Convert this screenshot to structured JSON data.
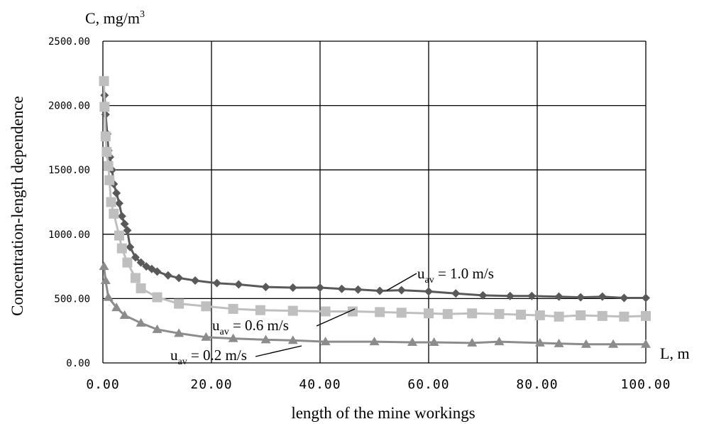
{
  "chart_data": {
    "type": "line",
    "title": "",
    "ylabel": "Concentration-length dependence",
    "xlabel": "length  of the mine workings",
    "y_unit_label_base": "C, mg/m",
    "y_unit_label_sup": "3",
    "x_unit_label": "L, m",
    "xlim": [
      0,
      100
    ],
    "ylim": [
      0,
      2500
    ],
    "x_ticks": [
      0,
      20,
      40,
      60,
      80,
      100
    ],
    "y_ticks": [
      0,
      500,
      1000,
      1500,
      2000,
      2500
    ],
    "x_tick_labels": [
      "0.00",
      "20.00",
      "40.00",
      "60.00",
      "80.00",
      "100.00"
    ],
    "y_tick_labels": [
      "0.00",
      "500.00",
      "1000.00",
      "1500.00",
      "2000.00",
      "2500.00"
    ],
    "grid": true,
    "series": [
      {
        "label_base": "u",
        "label_sub": "av",
        "label_rest": " = 1.0 m/s",
        "color": "#595959",
        "marker": "diamond",
        "points": [
          [
            0.3,
            2080
          ],
          [
            0.5,
            1930
          ],
          [
            0.8,
            1780
          ],
          [
            1.0,
            1650
          ],
          [
            1.3,
            1600
          ],
          [
            1.7,
            1500
          ],
          [
            2.0,
            1390
          ],
          [
            2.5,
            1320
          ],
          [
            3.0,
            1240
          ],
          [
            3.5,
            1140
          ],
          [
            4.0,
            1080
          ],
          [
            4.5,
            1030
          ],
          [
            5.0,
            900
          ],
          [
            6.0,
            820
          ],
          [
            7.0,
            780
          ],
          [
            8.0,
            750
          ],
          [
            9.0,
            730
          ],
          [
            10.0,
            710
          ],
          [
            12.0,
            680
          ],
          [
            14.0,
            660
          ],
          [
            17.0,
            640
          ],
          [
            21.0,
            620
          ],
          [
            25.0,
            610
          ],
          [
            30.0,
            590
          ],
          [
            35.0,
            585
          ],
          [
            40.0,
            585
          ],
          [
            44.0,
            575
          ],
          [
            47.0,
            570
          ],
          [
            51.0,
            560
          ],
          [
            55.0,
            565
          ],
          [
            60.0,
            555
          ],
          [
            65.0,
            540
          ],
          [
            70.0,
            525
          ],
          [
            75.0,
            520
          ],
          [
            79.0,
            520
          ],
          [
            84.0,
            515
          ],
          [
            88.0,
            510
          ],
          [
            92.0,
            515
          ],
          [
            96.0,
            505
          ],
          [
            100.0,
            505
          ]
        ]
      },
      {
        "label_base": "u",
        "label_sub": "av",
        "label_rest": " = 0.6 m/s",
        "color": "#bfbfbf",
        "marker": "square",
        "points": [
          [
            0.2,
            2190
          ],
          [
            0.3,
            1990
          ],
          [
            0.5,
            1760
          ],
          [
            0.7,
            1640
          ],
          [
            1.0,
            1530
          ],
          [
            1.2,
            1420
          ],
          [
            1.5,
            1250
          ],
          [
            2.0,
            1160
          ],
          [
            3.0,
            990
          ],
          [
            3.5,
            890
          ],
          [
            4.5,
            780
          ],
          [
            6.0,
            660
          ],
          [
            7.0,
            580
          ],
          [
            10.0,
            510
          ],
          [
            14.0,
            460
          ],
          [
            19.0,
            440
          ],
          [
            24.0,
            420
          ],
          [
            29.0,
            410
          ],
          [
            35.0,
            405
          ],
          [
            41.0,
            400
          ],
          [
            46.0,
            400
          ],
          [
            51.0,
            395
          ],
          [
            55.0,
            390
          ],
          [
            60.0,
            385
          ],
          [
            63.5,
            380
          ],
          [
            68.0,
            385
          ],
          [
            73.0,
            380
          ],
          [
            77.0,
            375
          ],
          [
            80.5,
            370
          ],
          [
            84.0,
            360
          ],
          [
            88.0,
            370
          ],
          [
            92.0,
            365
          ],
          [
            96.0,
            360
          ],
          [
            100.0,
            365
          ]
        ]
      },
      {
        "label_base": "u",
        "label_sub": "av",
        "label_rest": " = 0.2 m/s",
        "color": "#8c8c8c",
        "marker": "triangle",
        "points": [
          [
            0.2,
            750
          ],
          [
            0.5,
            640
          ],
          [
            1.0,
            510
          ],
          [
            2.5,
            430
          ],
          [
            4.0,
            370
          ],
          [
            7.0,
            310
          ],
          [
            10.0,
            260
          ],
          [
            14.0,
            230
          ],
          [
            19.0,
            200
          ],
          [
            24.0,
            190
          ],
          [
            30.0,
            180
          ],
          [
            35.0,
            175
          ],
          [
            41.0,
            165
          ],
          [
            50.0,
            165
          ],
          [
            57.0,
            160
          ],
          [
            61.0,
            160
          ],
          [
            68.0,
            155
          ],
          [
            73.0,
            165
          ],
          [
            80.5,
            155
          ],
          [
            84.0,
            150
          ],
          [
            89.0,
            145
          ],
          [
            94.0,
            145
          ],
          [
            100.0,
            145
          ]
        ]
      }
    ]
  }
}
